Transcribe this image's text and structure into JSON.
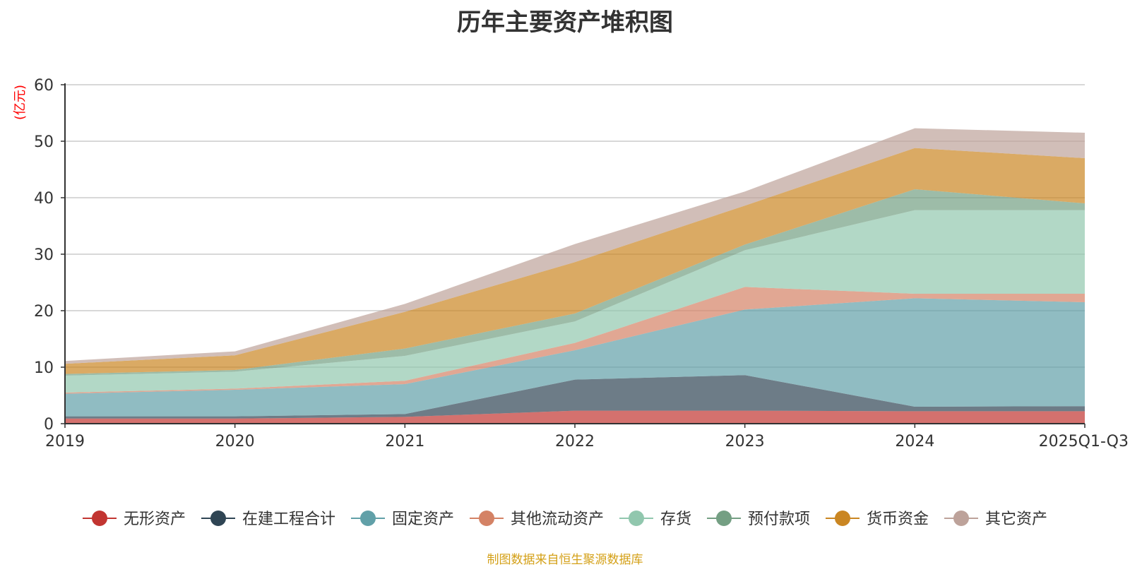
{
  "chart_data": {
    "type": "area",
    "stacked": true,
    "title": "历年主要资产堆积图",
    "ylabel": "(亿元)",
    "xlabel": "",
    "ylim": [
      0,
      60
    ],
    "yticks": [
      0,
      10,
      20,
      30,
      40,
      50,
      60
    ],
    "grid": true,
    "legend_position": "bottom",
    "categories": [
      "2019",
      "2020",
      "2021",
      "2022",
      "2023",
      "2024",
      "2025Q1-Q3"
    ],
    "series": [
      {
        "name": "无形资产",
        "color": "#c23531",
        "values": [
          0.9,
          0.9,
          1.2,
          2.3,
          2.3,
          2.2,
          2.2
        ]
      },
      {
        "name": "在建工程合计",
        "color": "#2f4554",
        "values": [
          0.4,
          0.4,
          0.5,
          5.5,
          6.3,
          0.8,
          0.9
        ]
      },
      {
        "name": "固定资产",
        "color": "#61a0a8",
        "values": [
          4.0,
          4.7,
          5.3,
          5.2,
          11.6,
          19.2,
          18.4
        ]
      },
      {
        "name": "其他流动资产",
        "color": "#d48265",
        "values": [
          0.2,
          0.2,
          0.6,
          1.3,
          4.0,
          0.8,
          1.5
        ]
      },
      {
        "name": "存货",
        "color": "#91c7ae",
        "values": [
          3.0,
          3.0,
          4.4,
          3.8,
          6.5,
          14.8,
          14.8
        ]
      },
      {
        "name": "预付款项",
        "color": "#749f83",
        "values": [
          0.3,
          0.3,
          1.3,
          1.4,
          1.0,
          3.7,
          1.2
        ]
      },
      {
        "name": "货币资金",
        "color": "#ca8622",
        "values": [
          1.8,
          2.6,
          6.5,
          9.1,
          6.9,
          7.3,
          8.0
        ]
      },
      {
        "name": "其它资产",
        "color": "#bda29a",
        "values": [
          0.5,
          0.7,
          1.4,
          3.2,
          2.5,
          3.5,
          4.5
        ]
      }
    ]
  },
  "source_note": "制图数据来自恒生聚源数据库",
  "colors": {
    "ylabel": "#ff0000",
    "source_note": "#d4a017",
    "grid": "#cccccc",
    "axis": "#333333"
  }
}
